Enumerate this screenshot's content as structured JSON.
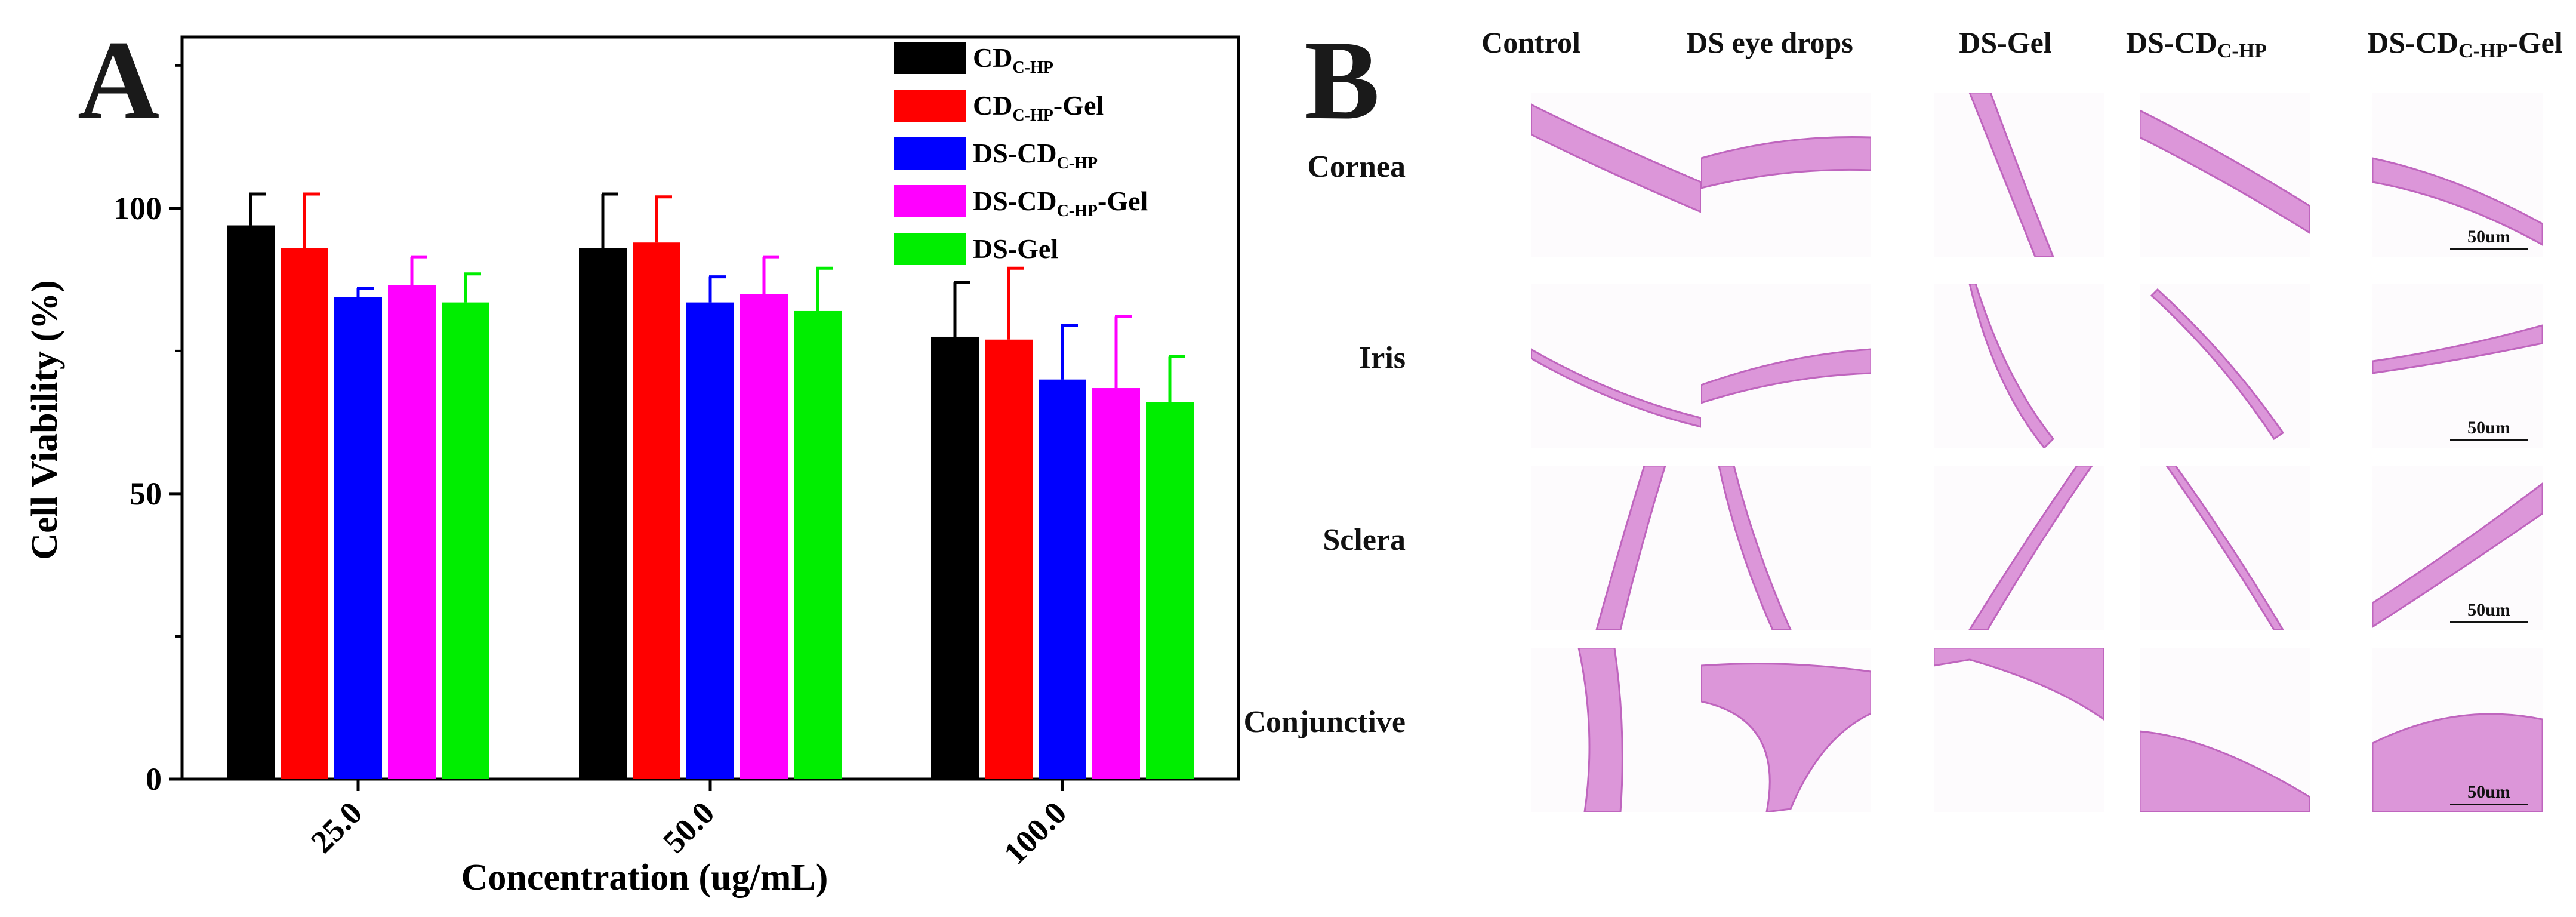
{
  "panels": {
    "a": {
      "letter": "A"
    },
    "b": {
      "letter": "B"
    }
  },
  "chart_data": {
    "type": "bar",
    "categories": [
      "25.0",
      "50.0",
      "100.0"
    ],
    "xlabel": "Concentration (ug/mL)",
    "ylabel": "Cell Viability (%)",
    "ylim": [
      0,
      130
    ],
    "yticks": [
      "0",
      "50",
      "100"
    ],
    "grid": false,
    "legend_position": "top-right",
    "series": [
      {
        "name": "CD",
        "name_sub": "C-HP",
        "name_suffix": "",
        "color": "#000000",
        "values": [
          97,
          93,
          77.5
        ],
        "errors": [
          5.5,
          9.5,
          9.5
        ]
      },
      {
        "name": "CD",
        "name_sub": "C-HP",
        "name_suffix": "-Gel",
        "color": "#ff0000",
        "values": [
          93,
          94,
          77
        ],
        "errors": [
          9.5,
          8,
          12.5
        ]
      },
      {
        "name": "DS-CD",
        "name_sub": "C-HP",
        "name_suffix": "",
        "color": "#0000ff",
        "values": [
          84.5,
          83.5,
          70
        ],
        "errors": [
          1.5,
          4.5,
          9.5
        ]
      },
      {
        "name": "DS-CD",
        "name_sub": "C-HP",
        "name_suffix": "-Gel",
        "color": "#ff00ff",
        "values": [
          86.5,
          85,
          68.5
        ],
        "errors": [
          5,
          6.5,
          12.5
        ]
      },
      {
        "name": "DS-Gel",
        "name_sub": "",
        "name_suffix": "",
        "color": "#00ee00",
        "values": [
          83.5,
          82,
          66
        ],
        "errors": [
          5,
          7.5,
          8
        ]
      }
    ]
  },
  "histology": {
    "columns": [
      {
        "label": "Control",
        "sub": "",
        "suffix": ""
      },
      {
        "label": "DS eye drops",
        "sub": "",
        "suffix": ""
      },
      {
        "label": "DS-Gel",
        "sub": "",
        "suffix": ""
      },
      {
        "label": "DS-CD",
        "sub": "C-HP",
        "suffix": ""
      },
      {
        "label": "DS-CD",
        "sub": "C-HP",
        "suffix": "-Gel"
      }
    ],
    "rows": [
      "Cornea",
      "Iris",
      "Sclera",
      "Conjunctive"
    ],
    "scale_bar_label": "50um",
    "stain_color": "#d98cd6",
    "stain_dark": "#b955b8"
  }
}
